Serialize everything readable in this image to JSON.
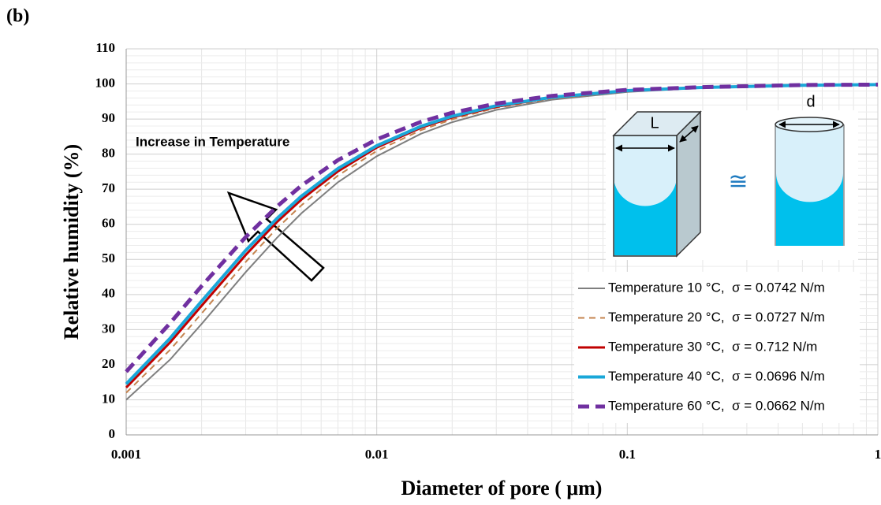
{
  "chart_data": {
    "type": "line",
    "title": "(b)",
    "x_label": "Diameter of pore ( μm)",
    "y_label": "Relative humidity (%)",
    "annotation": "Increase in Temperature",
    "inset_labels": [
      "L",
      "d",
      "≅"
    ],
    "x_log": true,
    "grid": true,
    "minor_grid": true,
    "legend": "lower right",
    "x": [
      0.001,
      0.0015,
      0.002,
      0.003,
      0.004,
      0.005,
      0.007,
      0.01,
      0.015,
      0.02,
      0.03,
      0.05,
      0.1,
      0.2,
      0.5,
      1
    ],
    "series": [
      {
        "name": "Temperature 10 °C,  σ = 0.0742 N/m",
        "color": "#7f7f7f",
        "dash": "none",
        "width": 2,
        "values": [
          10.0,
          21.5,
          31.6,
          46.4,
          56.2,
          63.1,
          72.0,
          79.4,
          85.8,
          89.1,
          92.6,
          95.5,
          97.7,
          98.9,
          99.5,
          99.8
        ]
      },
      {
        "name": "Temperature 20 °C,  σ = 0.0727 N/m",
        "color": "#c5834e",
        "dash": "8 6",
        "width": 2,
        "values": [
          12.0,
          24.3,
          34.6,
          49.3,
          58.9,
          65.4,
          73.9,
          80.9,
          86.8,
          89.9,
          93.2,
          95.8,
          97.9,
          98.9,
          99.6,
          99.8
        ]
      },
      {
        "name": "Temperature 30 °C,  σ = 0.712 N/m",
        "color": "#c00000",
        "dash": "none",
        "width": 3,
        "values": [
          13.5,
          26.4,
          36.8,
          51.3,
          60.7,
          67.0,
          75.1,
          81.9,
          87.5,
          90.5,
          93.5,
          96.1,
          98.0,
          99.0,
          99.6,
          99.8
        ]
      },
      {
        "name": "Temperature 40 °C,  σ = 0.0696 N/m",
        "color": "#1aa7d8",
        "dash": "none",
        "width": 4,
        "values": [
          14.5,
          27.6,
          38.1,
          52.6,
          61.7,
          68.0,
          75.9,
          82.4,
          87.9,
          90.8,
          93.8,
          96.2,
          98.1,
          99.0,
          99.6,
          99.8
        ]
      },
      {
        "name": "Temperature 60 °C,  σ = 0.0662 N/m",
        "color": "#7030a0",
        "dash": "14 8",
        "width": 5,
        "values": [
          18.0,
          31.9,
          42.4,
          56.4,
          65.1,
          71.0,
          78.3,
          84.2,
          89.2,
          91.8,
          94.4,
          96.6,
          98.3,
          99.1,
          99.7,
          99.8
        ]
      }
    ],
    "xlim": [
      0.001,
      1
    ],
    "xticks": [
      0.001,
      0.01,
      0.1,
      1
    ],
    "ylim": [
      0,
      110
    ],
    "yticks": [
      0,
      10,
      20,
      30,
      40,
      50,
      60,
      70,
      80,
      90,
      100,
      110
    ]
  }
}
